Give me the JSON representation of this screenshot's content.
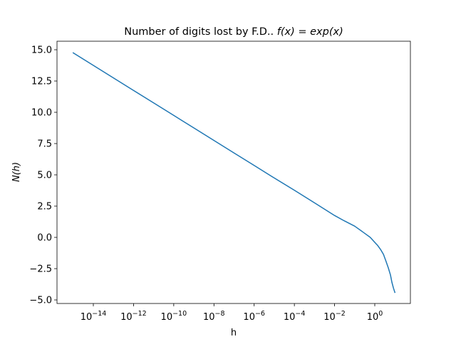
{
  "figure": {
    "title_text": "Number of digits lost by F.D.. ",
    "title_math": "f(x) = exp(x)",
    "xlabel": "h",
    "ylabel": "N(h)"
  },
  "chart_data": {
    "type": "line",
    "title": "Number of digits lost by F.D.. f(x) = exp(x)",
    "xlabel": "h",
    "ylabel": "N(h)",
    "xscale": "log",
    "xlim": [
      3.1e-16,
      36
    ],
    "ylim": [
      -5.3,
      15.7
    ],
    "grid": false,
    "legend": null,
    "x_ticks": [
      1e-14,
      1e-12,
      1e-10,
      1e-08,
      1e-06,
      0.0001,
      0.01,
      1
    ],
    "x_tick_labels": [
      {
        "base": "10",
        "exp": "−14"
      },
      {
        "base": "10",
        "exp": "−12"
      },
      {
        "base": "10",
        "exp": "−10"
      },
      {
        "base": "10",
        "exp": "−8"
      },
      {
        "base": "10",
        "exp": "−6"
      },
      {
        "base": "10",
        "exp": "−4"
      },
      {
        "base": "10",
        "exp": "−2"
      },
      {
        "base": "10",
        "exp": "0"
      }
    ],
    "y_ticks": [
      15.0,
      12.5,
      10.0,
      7.5,
      5.0,
      2.5,
      0.0,
      -2.5,
      -5.0
    ],
    "y_tick_labels": [
      "15.0",
      "12.5",
      "10.0",
      "7.5",
      "5.0",
      "2.5",
      "0.0",
      "−2.5",
      "−5.0"
    ],
    "series": [
      {
        "name": "N(h)",
        "color": "#1f77b4",
        "x": [
          1e-15,
          1e-14,
          1e-13,
          1e-12,
          1e-11,
          1e-10,
          1e-09,
          1e-08,
          1e-07,
          1e-06,
          1e-05,
          0.0001,
          0.001,
          0.01,
          0.03,
          0.1,
          0.3,
          0.6,
          1.0,
          1.4,
          2.0,
          2.7,
          3.5,
          4.7,
          6.0,
          7.1,
          8.5,
          10.0
        ],
        "y": [
          14.75,
          13.75,
          12.75,
          11.75,
          10.75,
          9.75,
          8.75,
          7.75,
          6.75,
          5.75,
          4.75,
          3.77,
          2.76,
          1.75,
          1.33,
          0.9,
          0.35,
          0.0,
          -0.4,
          -0.65,
          -1.0,
          -1.36,
          -1.85,
          -2.44,
          -3.0,
          -3.58,
          -4.05,
          -4.4
        ]
      }
    ]
  }
}
